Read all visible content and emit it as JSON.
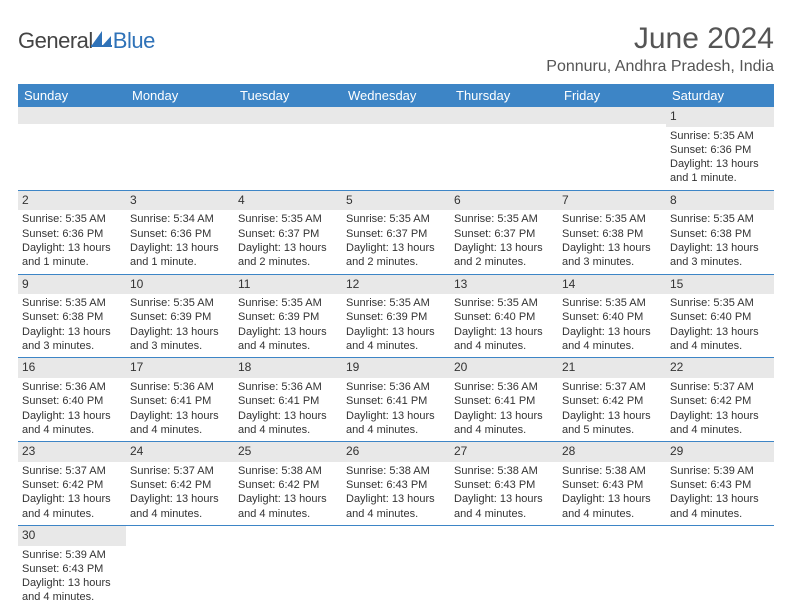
{
  "brand": {
    "part_a": "General",
    "part_b": "Blue"
  },
  "header": {
    "title": "June 2024",
    "location": "Ponnuru, Andhra Pradesh, India"
  },
  "colors": {
    "header_bg": "#3d85c6",
    "header_text": "#ffffff",
    "daynum_bg": "#e8e8e8",
    "row_border": "#3d85c6",
    "brand_accent": "#2f72b8"
  },
  "weekdays": [
    "Sunday",
    "Monday",
    "Tuesday",
    "Wednesday",
    "Thursday",
    "Friday",
    "Saturday"
  ],
  "weeks": [
    [
      {
        "day": "",
        "lines": []
      },
      {
        "day": "",
        "lines": []
      },
      {
        "day": "",
        "lines": []
      },
      {
        "day": "",
        "lines": []
      },
      {
        "day": "",
        "lines": []
      },
      {
        "day": "",
        "lines": []
      },
      {
        "day": "1",
        "lines": [
          "Sunrise: 5:35 AM",
          "Sunset: 6:36 PM",
          "Daylight: 13 hours and 1 minute."
        ]
      }
    ],
    [
      {
        "day": "2",
        "lines": [
          "Sunrise: 5:35 AM",
          "Sunset: 6:36 PM",
          "Daylight: 13 hours and 1 minute."
        ]
      },
      {
        "day": "3",
        "lines": [
          "Sunrise: 5:34 AM",
          "Sunset: 6:36 PM",
          "Daylight: 13 hours and 1 minute."
        ]
      },
      {
        "day": "4",
        "lines": [
          "Sunrise: 5:35 AM",
          "Sunset: 6:37 PM",
          "Daylight: 13 hours and 2 minutes."
        ]
      },
      {
        "day": "5",
        "lines": [
          "Sunrise: 5:35 AM",
          "Sunset: 6:37 PM",
          "Daylight: 13 hours and 2 minutes."
        ]
      },
      {
        "day": "6",
        "lines": [
          "Sunrise: 5:35 AM",
          "Sunset: 6:37 PM",
          "Daylight: 13 hours and 2 minutes."
        ]
      },
      {
        "day": "7",
        "lines": [
          "Sunrise: 5:35 AM",
          "Sunset: 6:38 PM",
          "Daylight: 13 hours and 3 minutes."
        ]
      },
      {
        "day": "8",
        "lines": [
          "Sunrise: 5:35 AM",
          "Sunset: 6:38 PM",
          "Daylight: 13 hours and 3 minutes."
        ]
      }
    ],
    [
      {
        "day": "9",
        "lines": [
          "Sunrise: 5:35 AM",
          "Sunset: 6:38 PM",
          "Daylight: 13 hours and 3 minutes."
        ]
      },
      {
        "day": "10",
        "lines": [
          "Sunrise: 5:35 AM",
          "Sunset: 6:39 PM",
          "Daylight: 13 hours and 3 minutes."
        ]
      },
      {
        "day": "11",
        "lines": [
          "Sunrise: 5:35 AM",
          "Sunset: 6:39 PM",
          "Daylight: 13 hours and 4 minutes."
        ]
      },
      {
        "day": "12",
        "lines": [
          "Sunrise: 5:35 AM",
          "Sunset: 6:39 PM",
          "Daylight: 13 hours and 4 minutes."
        ]
      },
      {
        "day": "13",
        "lines": [
          "Sunrise: 5:35 AM",
          "Sunset: 6:40 PM",
          "Daylight: 13 hours and 4 minutes."
        ]
      },
      {
        "day": "14",
        "lines": [
          "Sunrise: 5:35 AM",
          "Sunset: 6:40 PM",
          "Daylight: 13 hours and 4 minutes."
        ]
      },
      {
        "day": "15",
        "lines": [
          "Sunrise: 5:35 AM",
          "Sunset: 6:40 PM",
          "Daylight: 13 hours and 4 minutes."
        ]
      }
    ],
    [
      {
        "day": "16",
        "lines": [
          "Sunrise: 5:36 AM",
          "Sunset: 6:40 PM",
          "Daylight: 13 hours and 4 minutes."
        ]
      },
      {
        "day": "17",
        "lines": [
          "Sunrise: 5:36 AM",
          "Sunset: 6:41 PM",
          "Daylight: 13 hours and 4 minutes."
        ]
      },
      {
        "day": "18",
        "lines": [
          "Sunrise: 5:36 AM",
          "Sunset: 6:41 PM",
          "Daylight: 13 hours and 4 minutes."
        ]
      },
      {
        "day": "19",
        "lines": [
          "Sunrise: 5:36 AM",
          "Sunset: 6:41 PM",
          "Daylight: 13 hours and 4 minutes."
        ]
      },
      {
        "day": "20",
        "lines": [
          "Sunrise: 5:36 AM",
          "Sunset: 6:41 PM",
          "Daylight: 13 hours and 4 minutes."
        ]
      },
      {
        "day": "21",
        "lines": [
          "Sunrise: 5:37 AM",
          "Sunset: 6:42 PM",
          "Daylight: 13 hours and 5 minutes."
        ]
      },
      {
        "day": "22",
        "lines": [
          "Sunrise: 5:37 AM",
          "Sunset: 6:42 PM",
          "Daylight: 13 hours and 4 minutes."
        ]
      }
    ],
    [
      {
        "day": "23",
        "lines": [
          "Sunrise: 5:37 AM",
          "Sunset: 6:42 PM",
          "Daylight: 13 hours and 4 minutes."
        ]
      },
      {
        "day": "24",
        "lines": [
          "Sunrise: 5:37 AM",
          "Sunset: 6:42 PM",
          "Daylight: 13 hours and 4 minutes."
        ]
      },
      {
        "day": "25",
        "lines": [
          "Sunrise: 5:38 AM",
          "Sunset: 6:42 PM",
          "Daylight: 13 hours and 4 minutes."
        ]
      },
      {
        "day": "26",
        "lines": [
          "Sunrise: 5:38 AM",
          "Sunset: 6:43 PM",
          "Daylight: 13 hours and 4 minutes."
        ]
      },
      {
        "day": "27",
        "lines": [
          "Sunrise: 5:38 AM",
          "Sunset: 6:43 PM",
          "Daylight: 13 hours and 4 minutes."
        ]
      },
      {
        "day": "28",
        "lines": [
          "Sunrise: 5:38 AM",
          "Sunset: 6:43 PM",
          "Daylight: 13 hours and 4 minutes."
        ]
      },
      {
        "day": "29",
        "lines": [
          "Sunrise: 5:39 AM",
          "Sunset: 6:43 PM",
          "Daylight: 13 hours and 4 minutes."
        ]
      }
    ],
    [
      {
        "day": "30",
        "lines": [
          "Sunrise: 5:39 AM",
          "Sunset: 6:43 PM",
          "Daylight: 13 hours and 4 minutes."
        ]
      },
      {
        "day": "",
        "lines": []
      },
      {
        "day": "",
        "lines": []
      },
      {
        "day": "",
        "lines": []
      },
      {
        "day": "",
        "lines": []
      },
      {
        "day": "",
        "lines": []
      },
      {
        "day": "",
        "lines": []
      }
    ]
  ]
}
